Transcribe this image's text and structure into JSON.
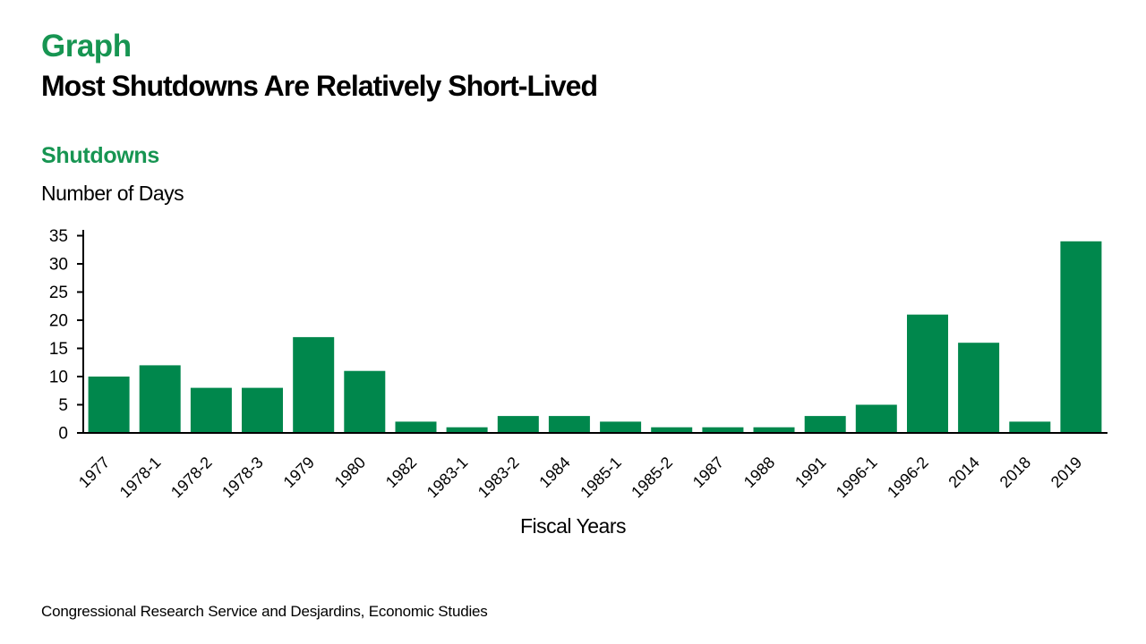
{
  "header": {
    "kicker": "Graph",
    "title": "Most Shutdowns Are Relatively Short-Lived"
  },
  "chart": {
    "heading": "Shutdowns",
    "y_axis_title": "Number of Days",
    "x_axis_title": "Fiscal Years"
  },
  "footer": {
    "source": "Congressional Research Service and Desjardins, Economic Studies"
  },
  "colors": {
    "bar": "#00874C",
    "heading_green": "#179552",
    "axis": "#000000",
    "background": "#ffffff"
  },
  "chart_data": {
    "type": "bar",
    "title": "Shutdowns",
    "xlabel": "Fiscal Years",
    "ylabel": "Number of Days",
    "categories": [
      "1977",
      "1978-1",
      "1978-2",
      "1978-3",
      "1979",
      "1980",
      "1982",
      "1983-1",
      "1983-2",
      "1984",
      "1985-1",
      "1985-2",
      "1987",
      "1988",
      "1991",
      "1996-1",
      "1996-2",
      "2014",
      "2018",
      "2019"
    ],
    "values": [
      10,
      12,
      8,
      8,
      17,
      11,
      2,
      1,
      3,
      3,
      2,
      1,
      1,
      1,
      3,
      5,
      21,
      16,
      2,
      34
    ],
    "ylim": [
      0,
      35
    ],
    "yticks": [
      0,
      5,
      10,
      15,
      20,
      25,
      30,
      35
    ],
    "grid": false,
    "legend": false,
    "bar_color": "#00874C"
  }
}
